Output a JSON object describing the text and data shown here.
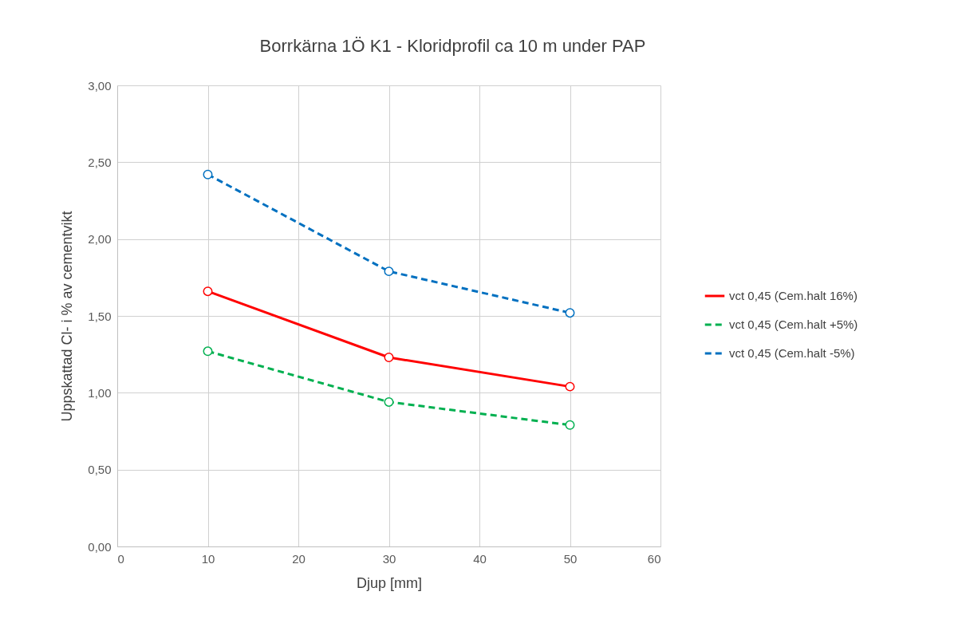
{
  "chart_data": {
    "type": "line",
    "title": "Borrkärna 1Ö K1 - Kloridprofil ca 10 m under PAP",
    "xlabel": "Djup [mm]",
    "ylabel": "Uppskattad Cl- i % av cementvikt",
    "x": [
      10,
      30,
      50
    ],
    "series": [
      {
        "name": "vct 0,45 (Cem.halt 16%)",
        "color": "#ff0000",
        "line_style": "solid",
        "values": [
          1.66,
          1.23,
          1.04
        ]
      },
      {
        "name": "vct 0,45 (Cem.halt +5%)",
        "color": "#00b050",
        "line_style": "dashed",
        "values": [
          1.27,
          0.94,
          0.79
        ]
      },
      {
        "name": "vct 0,45 (Cem.halt -5%)",
        "color": "#0070c0",
        "line_style": "dashed",
        "values": [
          2.42,
          1.79,
          1.52
        ]
      }
    ],
    "xlim": [
      0,
      60
    ],
    "xticks": [
      0,
      10,
      20,
      30,
      40,
      50,
      60
    ],
    "ylim": [
      0,
      3
    ],
    "yticks": [
      {
        "value": 0,
        "label": "0,00"
      },
      {
        "value": 0.5,
        "label": "0,50"
      },
      {
        "value": 1,
        "label": "1,00"
      },
      {
        "value": 1.5,
        "label": "1,50"
      },
      {
        "value": 2,
        "label": "2,00"
      },
      {
        "value": 2.5,
        "label": "2,50"
      },
      {
        "value": 3,
        "label": "3,00"
      }
    ],
    "grid": true,
    "legend": "right",
    "marker": "circle"
  }
}
